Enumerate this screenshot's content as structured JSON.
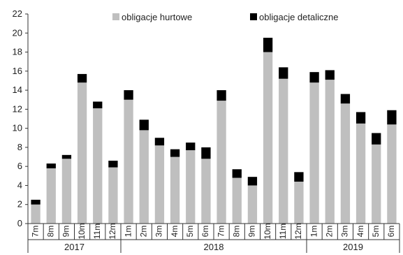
{
  "chart_data": {
    "type": "bar",
    "stacked": true,
    "categories": [
      "7m",
      "8m",
      "9m",
      "10m",
      "11m",
      "12m",
      "1m",
      "2m",
      "3m",
      "4m",
      "5m",
      "6m",
      "7m",
      "8m",
      "9m",
      "10m",
      "11m",
      "12m",
      "1m",
      "2m",
      "3m",
      "4m",
      "5m",
      "6m"
    ],
    "year_groups": [
      {
        "label": "2017",
        "count": 6
      },
      {
        "label": "2018",
        "count": 12
      },
      {
        "label": "2019",
        "count": 6
      }
    ],
    "series": [
      {
        "name": "obligacje hurtowe",
        "color": "#bfbfbf",
        "values": [
          2.0,
          5.8,
          6.8,
          14.8,
          12.1,
          5.9,
          13.0,
          9.8,
          8.2,
          7.0,
          7.7,
          6.8,
          12.9,
          4.8,
          4.0,
          18.0,
          15.2,
          4.4,
          14.8,
          15.1,
          12.6,
          10.5,
          8.3,
          10.4
        ]
      },
      {
        "name": "obligacje detaliczne",
        "color": "#000000",
        "values": [
          0.5,
          0.5,
          0.4,
          0.9,
          0.7,
          0.7,
          1.0,
          1.1,
          0.8,
          0.8,
          0.8,
          1.2,
          1.1,
          0.9,
          0.9,
          1.5,
          1.2,
          1.0,
          1.1,
          1.0,
          1.0,
          1.2,
          1.2,
          1.5
        ]
      }
    ],
    "yticks": [
      "0",
      "2",
      "4",
      "6",
      "8",
      "10",
      "12",
      "14",
      "16",
      "18",
      "20",
      "22"
    ],
    "ylim": [
      0,
      22
    ],
    "legend_position": "top",
    "grid": false
  }
}
